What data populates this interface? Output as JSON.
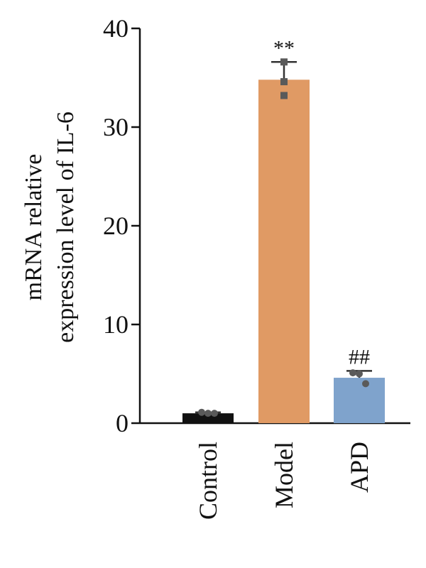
{
  "chart_data": {
    "type": "bar",
    "ylabel": [
      "mRNA relative",
      "expression level of IL-6"
    ],
    "categories": [
      "Control",
      "Model",
      "APD"
    ],
    "values": [
      1.0,
      34.8,
      4.6
    ],
    "errors": [
      0.1,
      1.8,
      0.7
    ],
    "points": [
      [
        1.1,
        1.0,
        1.0
      ],
      [
        36.6,
        34.6,
        33.2
      ],
      [
        5.1,
        5.0,
        4.0
      ]
    ],
    "annotations": [
      null,
      "**",
      "##"
    ],
    "colors": [
      "#111111",
      "#e09a64",
      "#7fa3cc"
    ],
    "point_color": "#5a5a5a",
    "ylim": [
      0,
      40
    ],
    "yticks": [
      0,
      10,
      20,
      30,
      40
    ],
    "grid": false
  }
}
